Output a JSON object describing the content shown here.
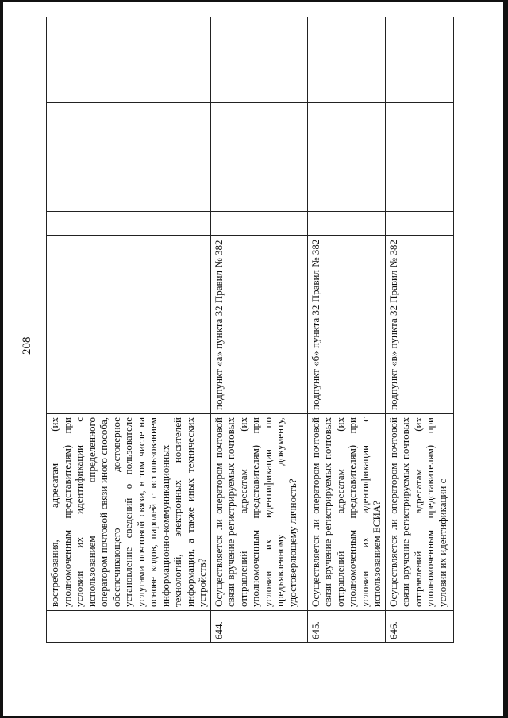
{
  "page_number": "208",
  "rows": [
    {
      "number": "",
      "question": "востребования, адресатам (их уполномоченным представителям) при условии их идентификации с использованием определенного оператором почтовой связи иного способа, обеспечивающего достоверное установление сведений о пользователе услугами почтовой связи, в том числе на основе кодов, паролей с использованием информационно-коммуникационных технологий, электронных носителей информации, а также иных технических устройств?",
      "reference": ""
    },
    {
      "number": "644.",
      "question": "Осуществляется ли оператором почтовой связи вручение регистрируемых почтовых отправлений адресатам (их уполномоченным представителям) при условии их идентификации по предъявленному документу, удостоверяющему личность?",
      "reference": "подпункт «а» пункта 32 Правил № 382"
    },
    {
      "number": "645.",
      "question": "Осуществляется ли оператором почтовой связи вручение регистрируемых почтовых отправлений адресатам (их уполномоченным представителям) при условии их идентификации с использованием ЕСИА?",
      "reference": "подпункт «б» пункта 32 Правил № 382"
    },
    {
      "number": "646.",
      "question": "Осуществляется ли оператором почтовой связи вручение регистрируемых почтовых отправлений адресатам (их уполномоченным представителям) при условии их идентификации с",
      "reference": "подпункт «в» пункта 32 Правил № 382"
    }
  ]
}
